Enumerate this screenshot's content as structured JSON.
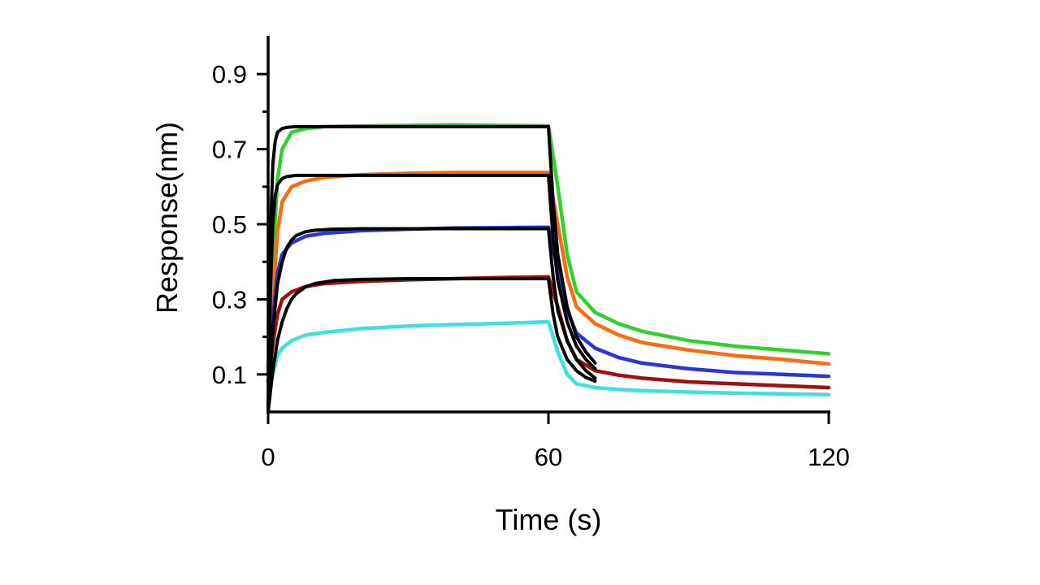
{
  "chart_data": {
    "type": "line",
    "xlabel": "Time (s)",
    "ylabel": "Response(nm)",
    "xlim": [
      0,
      120
    ],
    "ylim": [
      0,
      1.0
    ],
    "x_ticks": [
      {
        "value": 0,
        "label": "0"
      },
      {
        "value": 60,
        "label": "60"
      },
      {
        "value": 120,
        "label": "120"
      }
    ],
    "y_ticks": [
      {
        "value": 0.1,
        "label": "0.1"
      },
      {
        "value": 0.3,
        "label": "0.3"
      },
      {
        "value": 0.5,
        "label": "0.5"
      },
      {
        "value": 0.7,
        "label": "0.7"
      },
      {
        "value": 0.9,
        "label": "0.9"
      }
    ],
    "y_minor_ticks": [
      0.2,
      0.4,
      0.6,
      0.8
    ],
    "grid": false,
    "legend": "none",
    "series": [
      {
        "color": "#2fd12f",
        "role": "data",
        "x": [
          0,
          1,
          2,
          3,
          5,
          8,
          12,
          20,
          30,
          40,
          50,
          60,
          62,
          64,
          66,
          70,
          75,
          80,
          90,
          100,
          110,
          120
        ],
        "y": [
          0.12,
          0.4,
          0.62,
          0.7,
          0.745,
          0.755,
          0.76,
          0.762,
          0.763,
          0.765,
          0.763,
          0.762,
          0.6,
          0.42,
          0.32,
          0.265,
          0.235,
          0.215,
          0.19,
          0.175,
          0.165,
          0.155
        ]
      },
      {
        "color": "#ff6a10",
        "role": "data",
        "x": [
          0,
          1,
          2,
          3,
          5,
          8,
          12,
          20,
          30,
          40,
          50,
          60,
          62,
          64,
          66,
          70,
          75,
          80,
          90,
          100,
          110,
          120
        ],
        "y": [
          0.12,
          0.3,
          0.48,
          0.56,
          0.6,
          0.615,
          0.625,
          0.632,
          0.636,
          0.638,
          0.638,
          0.638,
          0.5,
          0.36,
          0.28,
          0.235,
          0.205,
          0.185,
          0.165,
          0.15,
          0.14,
          0.128
        ]
      },
      {
        "color": "#2b35d8",
        "role": "data",
        "x": [
          0,
          1,
          2,
          3,
          5,
          8,
          12,
          20,
          30,
          40,
          50,
          60,
          62,
          64,
          66,
          70,
          75,
          80,
          90,
          100,
          110,
          120
        ],
        "y": [
          0.1,
          0.25,
          0.37,
          0.42,
          0.45,
          0.468,
          0.476,
          0.483,
          0.487,
          0.49,
          0.491,
          0.492,
          0.38,
          0.27,
          0.21,
          0.17,
          0.145,
          0.13,
          0.115,
          0.105,
          0.1,
          0.095
        ]
      },
      {
        "color": "#a01010",
        "role": "data",
        "x": [
          0,
          1,
          2,
          3,
          5,
          8,
          12,
          20,
          30,
          40,
          50,
          60,
          62,
          64,
          66,
          70,
          75,
          80,
          90,
          100,
          110,
          120
        ],
        "y": [
          0.08,
          0.18,
          0.26,
          0.3,
          0.32,
          0.334,
          0.342,
          0.348,
          0.352,
          0.355,
          0.358,
          0.36,
          0.28,
          0.19,
          0.14,
          0.11,
          0.098,
          0.09,
          0.08,
          0.075,
          0.07,
          0.065
        ]
      },
      {
        "color": "#3ee0e0",
        "role": "data",
        "x": [
          0,
          1,
          2,
          3,
          5,
          8,
          12,
          20,
          30,
          40,
          50,
          60,
          62,
          64,
          66,
          70,
          75,
          80,
          90,
          100,
          110,
          120
        ],
        "y": [
          0.05,
          0.1,
          0.15,
          0.17,
          0.19,
          0.205,
          0.212,
          0.222,
          0.229,
          0.233,
          0.236,
          0.24,
          0.16,
          0.1,
          0.075,
          0.065,
          0.06,
          0.057,
          0.053,
          0.05,
          0.048,
          0.046
        ]
      },
      {
        "color": "#000000",
        "role": "fit",
        "x": [
          0,
          0.5,
          1,
          1.5,
          2,
          3,
          4,
          6,
          8,
          12,
          20,
          40,
          60,
          61,
          62,
          64,
          66,
          68,
          70
        ],
        "y": [
          0.0,
          0.48,
          0.66,
          0.72,
          0.745,
          0.755,
          0.758,
          0.76,
          0.76,
          0.76,
          0.76,
          0.76,
          0.76,
          0.56,
          0.42,
          0.28,
          0.2,
          0.16,
          0.13
        ]
      },
      {
        "color": "#000000",
        "role": "fit",
        "x": [
          0,
          0.5,
          1,
          1.5,
          2,
          3,
          4,
          6,
          8,
          12,
          20,
          40,
          60,
          61,
          62,
          64,
          66,
          68,
          70
        ],
        "y": [
          0.0,
          0.33,
          0.5,
          0.575,
          0.605,
          0.622,
          0.627,
          0.63,
          0.63,
          0.63,
          0.63,
          0.63,
          0.63,
          0.46,
          0.35,
          0.24,
          0.175,
          0.14,
          0.115
        ]
      },
      {
        "color": "#000000",
        "role": "fit",
        "x": [
          0,
          1,
          2,
          3,
          4,
          5,
          6,
          8,
          10,
          14,
          20,
          40,
          60,
          61,
          62,
          64,
          66,
          68,
          70
        ],
        "y": [
          0.0,
          0.22,
          0.34,
          0.4,
          0.438,
          0.458,
          0.47,
          0.48,
          0.484,
          0.487,
          0.488,
          0.488,
          0.488,
          0.36,
          0.27,
          0.19,
          0.14,
          0.11,
          0.09
        ]
      },
      {
        "color": "#000000",
        "role": "fit",
        "x": [
          0,
          1,
          2,
          3,
          4,
          5,
          6,
          8,
          10,
          14,
          20,
          30,
          40,
          60,
          61,
          62,
          64,
          66,
          68,
          70
        ],
        "y": [
          0.0,
          0.11,
          0.19,
          0.24,
          0.275,
          0.3,
          0.315,
          0.333,
          0.342,
          0.35,
          0.353,
          0.355,
          0.355,
          0.355,
          0.26,
          0.2,
          0.14,
          0.11,
          0.092,
          0.082
        ]
      }
    ]
  }
}
